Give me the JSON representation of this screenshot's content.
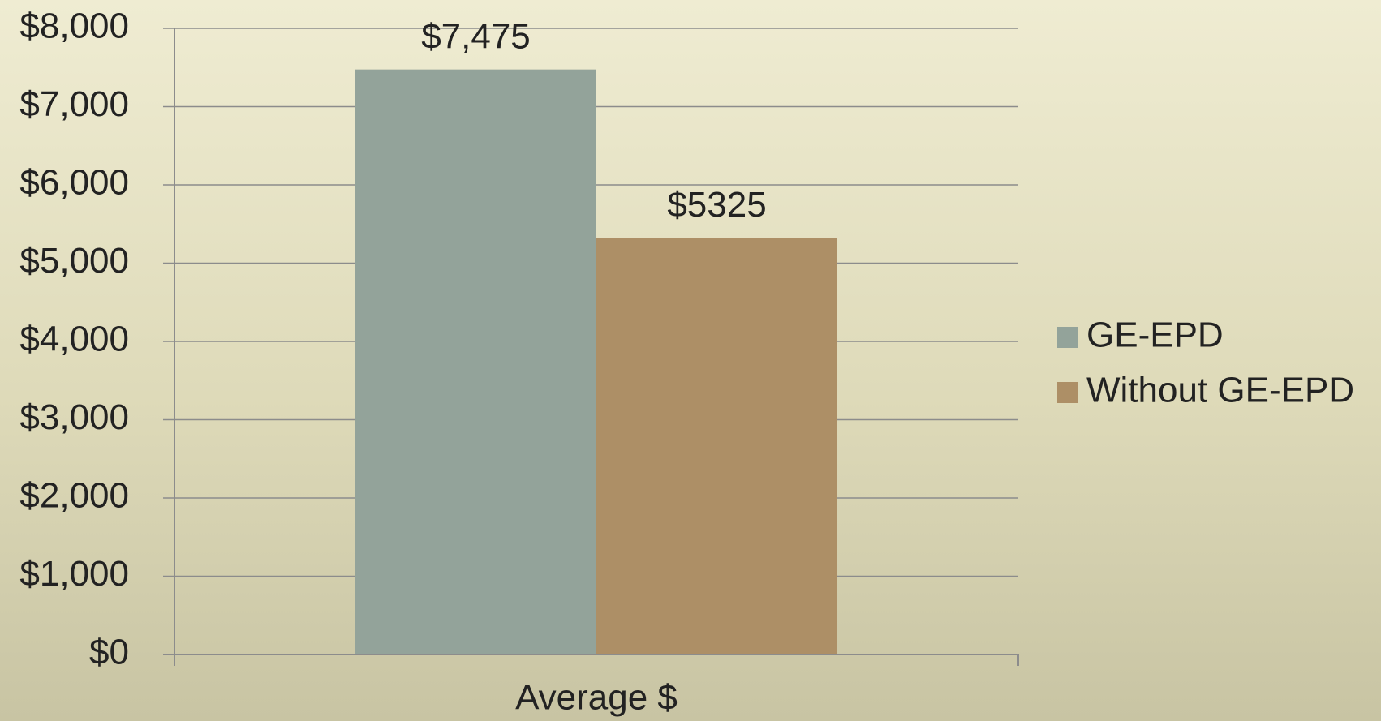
{
  "chart_data": {
    "type": "bar",
    "categories": [
      "Average $"
    ],
    "series": [
      {
        "name": "GE-EPD",
        "color": "#93a39a",
        "values": [
          7475
        ],
        "value_labels": [
          "$7,475"
        ]
      },
      {
        "name": "Without GE-EPD",
        "color": "#ad8f66",
        "values": [
          5325
        ],
        "value_labels": [
          "$5325"
        ]
      }
    ],
    "ylim": [
      0,
      8000
    ],
    "yticks": [
      {
        "value": 0,
        "label": "$0"
      },
      {
        "value": 1000,
        "label": "$1,000"
      },
      {
        "value": 2000,
        "label": "$2,000"
      },
      {
        "value": 3000,
        "label": "$3,000"
      },
      {
        "value": 4000,
        "label": "$4,000"
      },
      {
        "value": 5000,
        "label": "$5,000"
      },
      {
        "value": 6000,
        "label": "$6,000"
      },
      {
        "value": 7000,
        "label": "$7,000"
      },
      {
        "value": 8000,
        "label": "$8,000"
      }
    ],
    "grid": true,
    "legend": "right"
  }
}
